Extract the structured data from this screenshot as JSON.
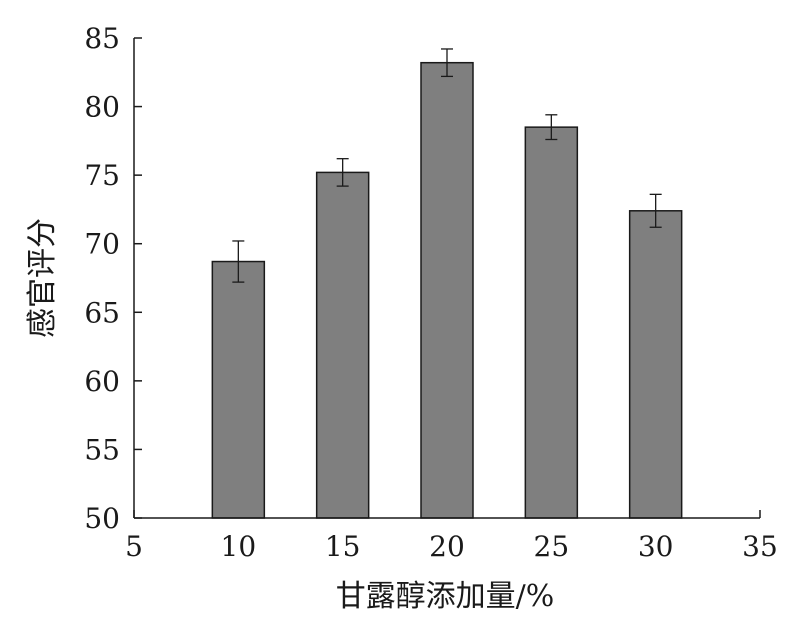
{
  "chart_data": {
    "type": "bar",
    "xlabel": "甘露醇添加量/%",
    "ylabel": "感官评分",
    "xlim": [
      5,
      35
    ],
    "ylim": [
      50,
      85
    ],
    "x_ticks": [
      5,
      10,
      15,
      20,
      25,
      30,
      35
    ],
    "y_ticks": [
      50,
      55,
      60,
      65,
      70,
      75,
      80,
      85
    ],
    "categories": [
      10,
      15,
      20,
      25,
      30
    ],
    "values": [
      68.7,
      75.2,
      83.2,
      78.5,
      72.4
    ],
    "error": [
      1.5,
      1.0,
      1.0,
      0.9,
      1.2
    ],
    "bar_color": "#7f7f7f",
    "bar_edge_color": "#1a1a1a",
    "grid": false,
    "legend": "none"
  }
}
